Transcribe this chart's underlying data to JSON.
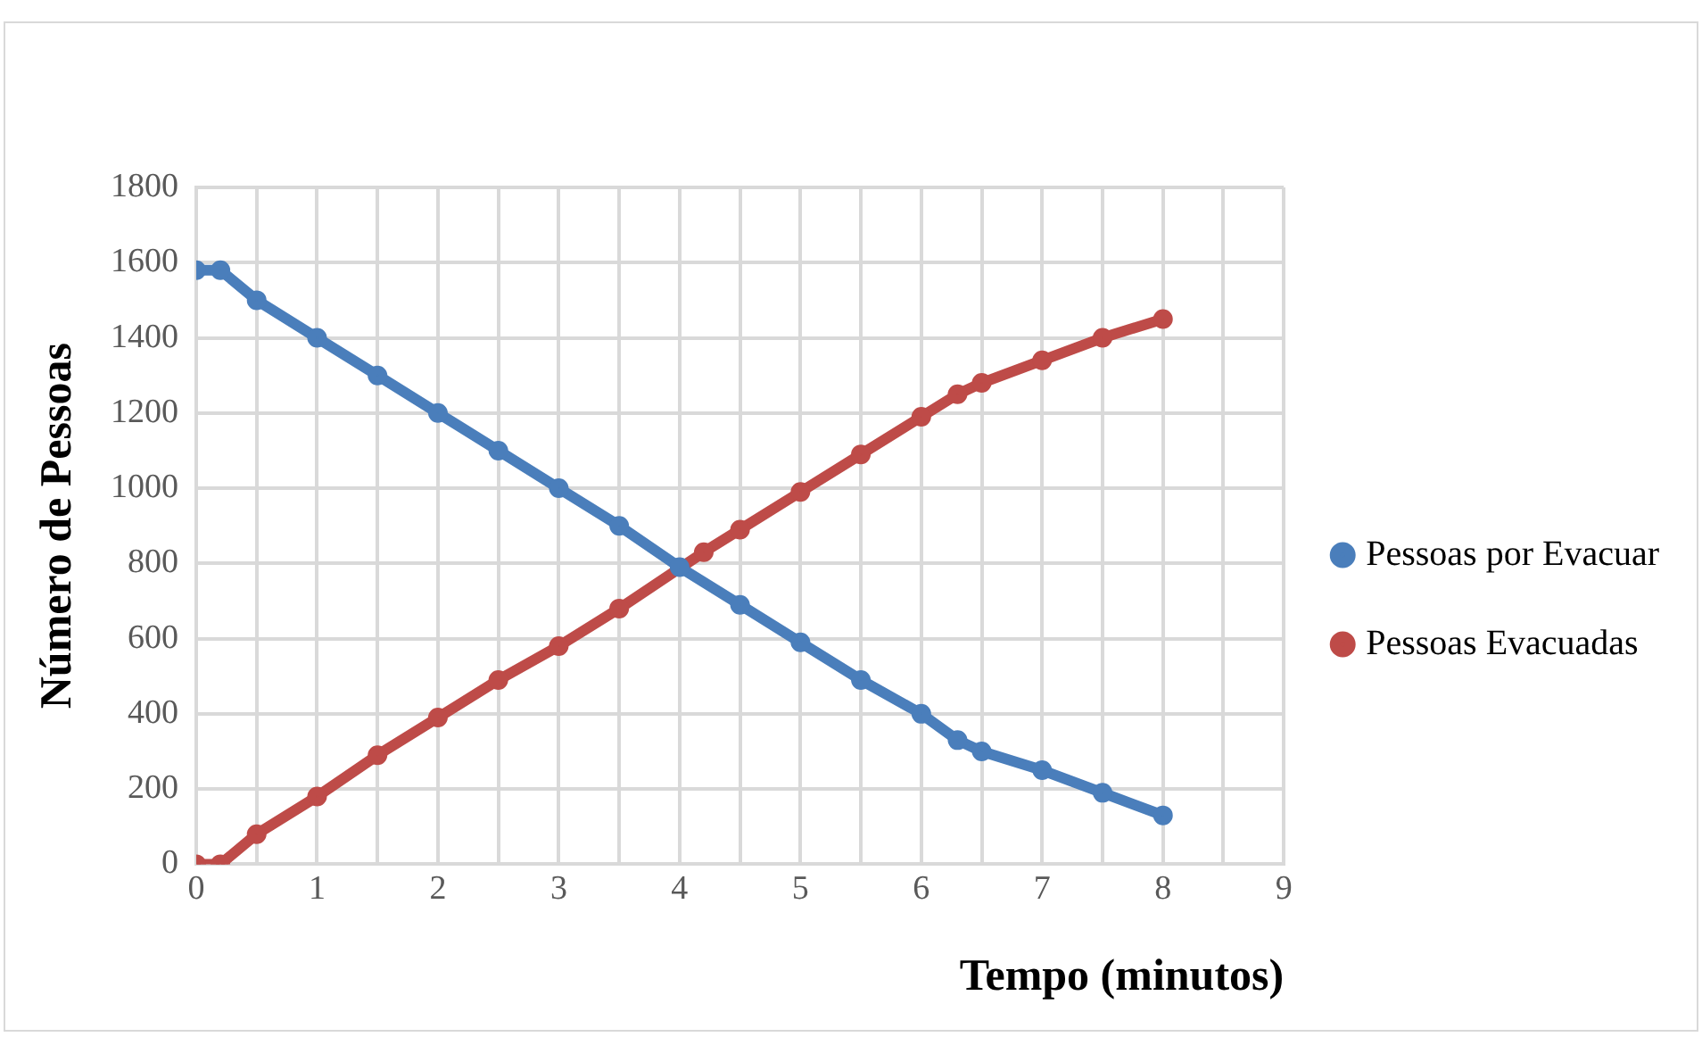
{
  "chart_data": {
    "type": "line",
    "xlabel": "Tempo (minutos)",
    "ylabel": "Número de Pessoas",
    "x": [
      0,
      0.2,
      0.5,
      1,
      1.5,
      2,
      2.5,
      3,
      3.5,
      4,
      4.5,
      5,
      5.5,
      6,
      6.3,
      6.5,
      7,
      7.5,
      8
    ],
    "series": [
      {
        "name": "Pessoas por Evacuar",
        "color": "#4a7ebb",
        "values": [
          1580,
          1580,
          1500,
          1400,
          1300,
          1200,
          1100,
          1000,
          900,
          790,
          690,
          590,
          490,
          400,
          330,
          300,
          250,
          190,
          130
        ]
      },
      {
        "name": "Pessoas Evacuadas",
        "color": "#be4b48",
        "x": [
          0,
          0.2,
          0.5,
          1,
          1.5,
          2,
          2.5,
          3,
          3.5,
          4.2,
          4.5,
          5,
          5.5,
          6,
          6.3,
          6.5,
          7,
          7.5,
          8
        ],
        "values": [
          0,
          0,
          80,
          180,
          290,
          390,
          490,
          580,
          680,
          830,
          890,
          990,
          1090,
          1190,
          1250,
          1280,
          1340,
          1400,
          1450
        ]
      }
    ],
    "xlim": [
      0,
      9
    ],
    "xticks": [
      0,
      {
        "value": 0.5,
        "label": null
      },
      1,
      {
        "value": 1.5,
        "label": null
      },
      2,
      {
        "value": 2.5,
        "label": null
      },
      3,
      {
        "value": 3.5,
        "label": null
      },
      4,
      {
        "value": 4.5,
        "label": null
      },
      5,
      {
        "value": 5.5,
        "label": null
      },
      6,
      {
        "value": 6.5,
        "label": null
      },
      7,
      {
        "value": 7.5,
        "label": null
      },
      8,
      {
        "value": 8.5,
        "label": null
      },
      9
    ],
    "ylim": [
      0,
      1800
    ],
    "yticks": [
      0,
      200,
      400,
      600,
      800,
      1000,
      1200,
      1400,
      1600,
      1800
    ],
    "grid": true,
    "legend": "right",
    "marker": "circle",
    "line_style": "solid"
  }
}
